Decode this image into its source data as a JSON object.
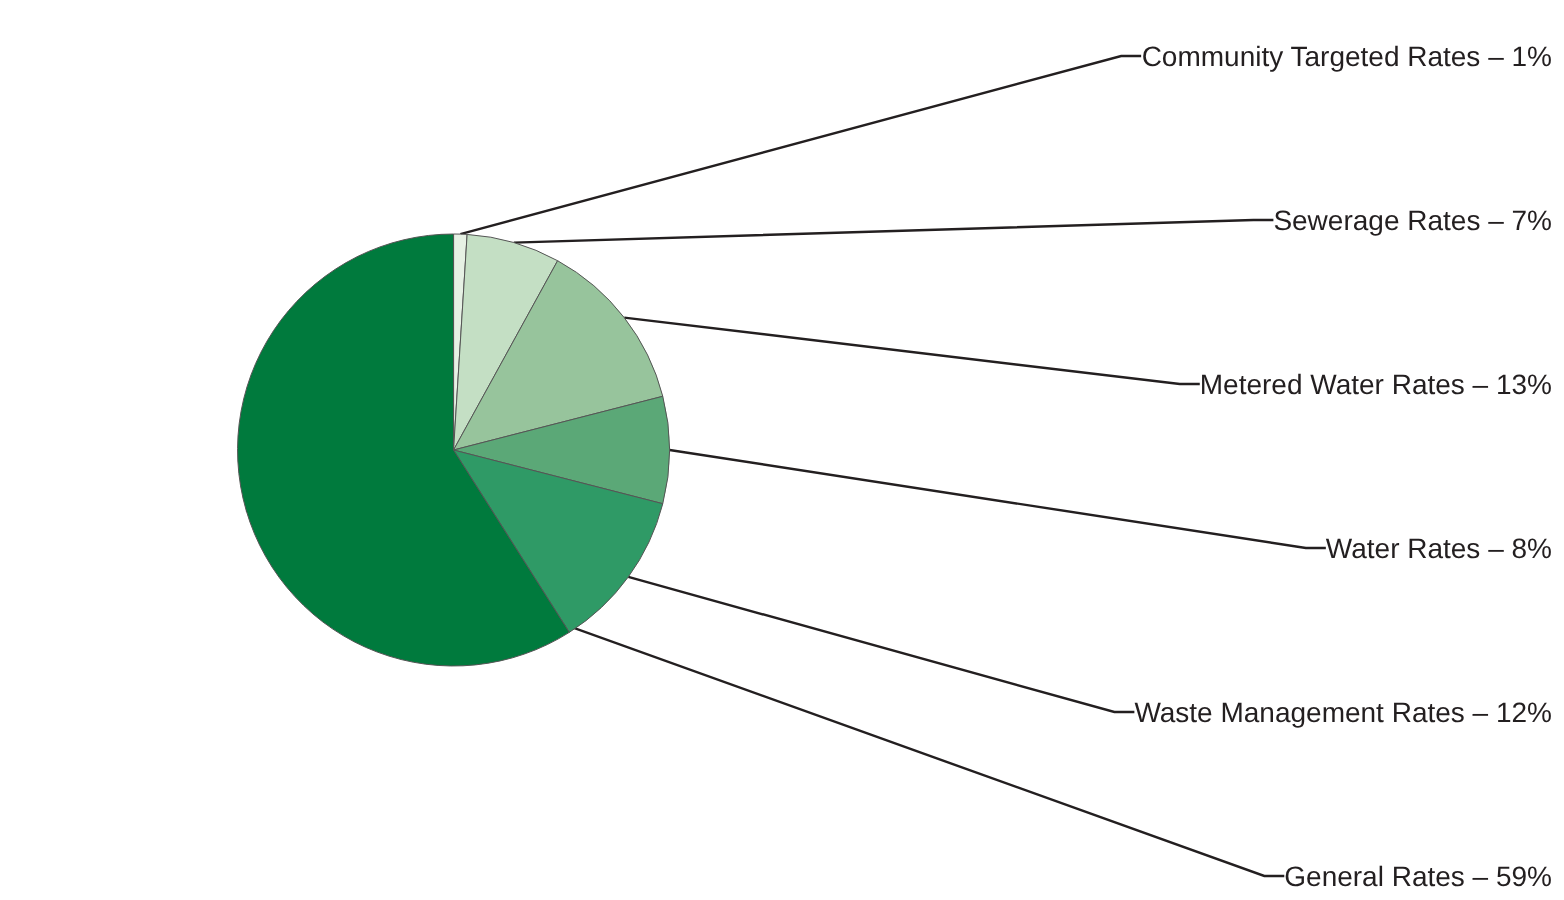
{
  "chart_data": {
    "type": "pie",
    "categories": [
      "Community Targeted Rates –",
      "Sewerage Rates –",
      "Metered Water Rates –",
      "Water Rates –",
      "Waste Management Rates –",
      "General Rates –"
    ],
    "values": [
      1,
      7,
      13,
      8,
      12,
      59
    ],
    "value_labels": [
      "1%",
      "7%",
      "13%",
      "8%",
      "12%",
      "59%"
    ],
    "colors": [
      "#e6f1e4",
      "#c4dfc4",
      "#97c49c",
      "#5ba877",
      "#2f9a66",
      "#007a3d"
    ]
  }
}
